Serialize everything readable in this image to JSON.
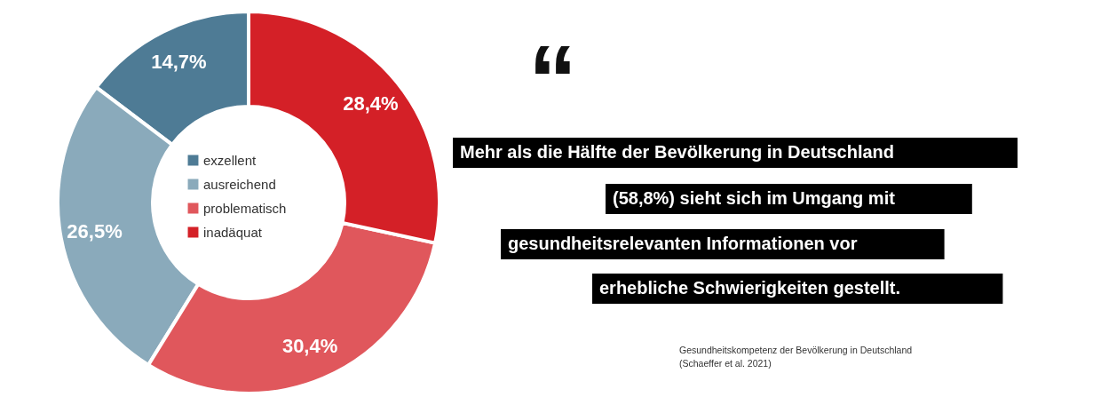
{
  "chart_data": {
    "type": "donut",
    "categories": [
      "exzellent",
      "ausreichend",
      "problematisch",
      "inadäquat"
    ],
    "values": [
      14.7,
      26.5,
      30.4,
      28.4
    ],
    "colors": [
      "#4e7b95",
      "#8aaabb",
      "#e0575c",
      "#d42027"
    ],
    "value_labels": [
      "14,7%",
      "26,5%",
      "30,4%",
      "28,4%"
    ],
    "legend": "center",
    "annotations": [
      "“",
      "Mehr als die Hälfte der Bevölkerung in Deutschland",
      "(58,8%) sieht sich im Umgang mit",
      "gesundheitsrelevanten Informationen vor",
      "erhebliche Schwierigkeiten gestellt.",
      "Gesundheitskompetenz der Bevölkerung in Deutschland",
      "(Schaeffer et al. 2021)"
    ]
  }
}
